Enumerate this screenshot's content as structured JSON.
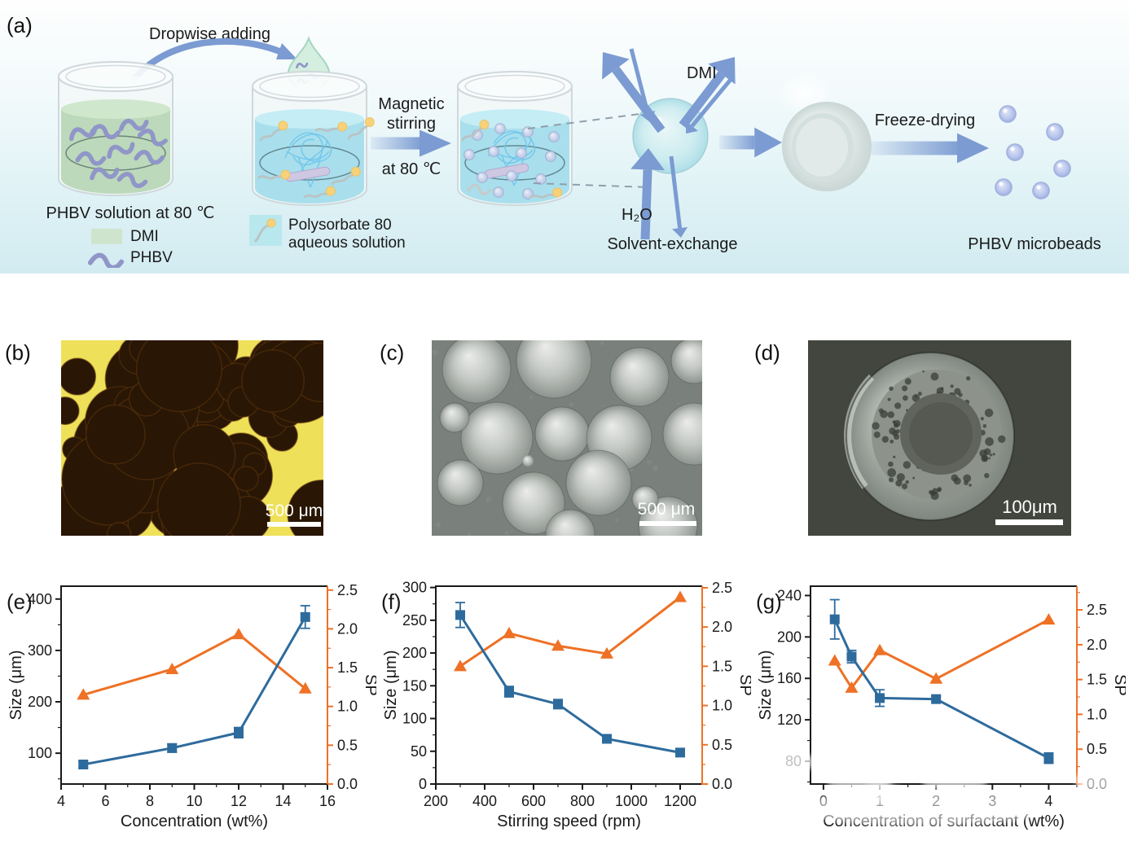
{
  "figure": {
    "panel_a": {
      "label": "(a)",
      "texts": {
        "dropwise": "Dropwise adding",
        "magnetic_1": "Magnetic",
        "magnetic_2": "stirring",
        "at80": "at 80 ℃",
        "beaker1_caption": "PHBV solution at 80 ℃",
        "legend_dmi": "DMI",
        "legend_phbv": "PHBV",
        "legend_polysorbate_1": "Polysorbate 80",
        "legend_polysorbate_2": "aqueous solution",
        "dmi_label": "DMI",
        "h2o_label": "H₂O",
        "solvent_exchange": "Solvent-exchange",
        "freeze_drying": "Freeze-drying",
        "microbeads": "PHBV microbeads"
      }
    },
    "panel_b": {
      "label": "(b)",
      "scale_bar": "500 μm"
    },
    "panel_c": {
      "label": "(c)",
      "scale_bar": "500 μm"
    },
    "panel_d": {
      "label": "(d)",
      "scale_bar": "100μm"
    }
  },
  "colors": {
    "size_series": "#2e6b9d",
    "sp_series": "#ee7125",
    "arrow_blue": "#7b9bd2",
    "axis_black": "#1a1a1a",
    "micro_yellow": "#efe059",
    "micro_circle": "#291605",
    "sem_bg": "#7a807c",
    "sem_dark_bg": "#42463f",
    "panel_a_bg_top": "#fefefe",
    "panel_a_bg_bottom": "#d2ebf1"
  },
  "chart_data": [
    {
      "id": "e",
      "panel_label": "(e)",
      "type": "line",
      "xlabel": "Concentration (wt%)",
      "xlim": [
        4,
        16
      ],
      "x_ticks": [
        "4",
        "6",
        "8",
        "10",
        "12",
        "14",
        "16"
      ],
      "x_minor_step": 1,
      "left_axis": {
        "label": "Size (μm)",
        "lim": [
          40,
          425
        ],
        "ticks": [
          "100",
          "200",
          "300",
          "400"
        ],
        "minor_step": 50
      },
      "right_axis": {
        "label": "SP",
        "lim": [
          0,
          2.55
        ],
        "ticks": [
          "0.0",
          "0.5",
          "1.0",
          "1.5",
          "2.0",
          "2.5"
        ],
        "minor_step": 0.25
      },
      "series": [
        {
          "name": "SP",
          "axis": "right",
          "marker": "triangle",
          "x": [
            5,
            9,
            12,
            15
          ],
          "y": [
            1.15,
            1.48,
            1.93,
            1.23
          ]
        },
        {
          "name": "Size",
          "axis": "left",
          "marker": "square",
          "x": [
            5,
            9,
            12,
            15
          ],
          "y": [
            78,
            110,
            140,
            365
          ],
          "yerr": [
            6,
            8,
            10,
            22
          ]
        }
      ]
    },
    {
      "id": "f",
      "panel_label": "(f)",
      "type": "line",
      "xlabel": "Stirring speed (rpm)",
      "xlim": [
        200,
        1290
      ],
      "x_ticks": [
        "200",
        "400",
        "600",
        "800",
        "1000",
        "1200"
      ],
      "x_minor_step": 100,
      "left_axis": {
        "label": "Size (μm)",
        "lim": [
          0,
          302
        ],
        "ticks": [
          "0",
          "50",
          "100",
          "150",
          "200",
          "250",
          "300"
        ],
        "minor_step": 25
      },
      "right_axis": {
        "label": "SP",
        "lim": [
          0,
          2.52
        ],
        "ticks": [
          "0.0",
          "0.5",
          "1.0",
          "1.5",
          "2.0",
          "2.5"
        ],
        "minor_step": 0.25
      },
      "series": [
        {
          "name": "SP",
          "axis": "right",
          "marker": "triangle",
          "x": [
            300,
            500,
            700,
            900,
            1200
          ],
          "y": [
            1.5,
            1.92,
            1.76,
            1.66,
            2.38
          ]
        },
        {
          "name": "Size",
          "axis": "left",
          "marker": "square",
          "x": [
            300,
            500,
            700,
            900,
            1200
          ],
          "y": [
            258,
            141,
            122,
            69,
            48
          ],
          "yerr": [
            19,
            8,
            7,
            5,
            4
          ]
        }
      ]
    },
    {
      "id": "g",
      "panel_label": "(g)",
      "type": "line",
      "xlabel": "Concentration of surfactant (wt%)",
      "xlim": [
        -0.23,
        4.5
      ],
      "x_ticks": [
        "0",
        "1",
        "2",
        "3",
        "4"
      ],
      "x_minor_step": 0.5,
      "left_axis": {
        "label": "Size (μm)",
        "lim": [
          58,
          249
        ],
        "ticks": [
          "80",
          "120",
          "160",
          "200",
          "240"
        ],
        "minor_step": 20
      },
      "right_axis": {
        "label": "SP",
        "lim": [
          0,
          2.84
        ],
        "ticks": [
          "0.0",
          "0.5",
          "1.0",
          "1.5",
          "2.0",
          "2.5"
        ],
        "minor_step": 0.25
      },
      "series": [
        {
          "name": "SP",
          "axis": "right",
          "marker": "triangle",
          "x": [
            0.2,
            0.5,
            1,
            2,
            4
          ],
          "y": [
            1.77,
            1.38,
            1.92,
            1.51,
            2.36
          ]
        },
        {
          "name": "Size",
          "axis": "left",
          "marker": "square",
          "x": [
            0.2,
            0.5,
            1,
            2,
            4
          ],
          "y": [
            217,
            181,
            141,
            140,
            83
          ],
          "yerr": [
            19,
            6,
            8,
            3,
            5
          ]
        }
      ]
    }
  ]
}
